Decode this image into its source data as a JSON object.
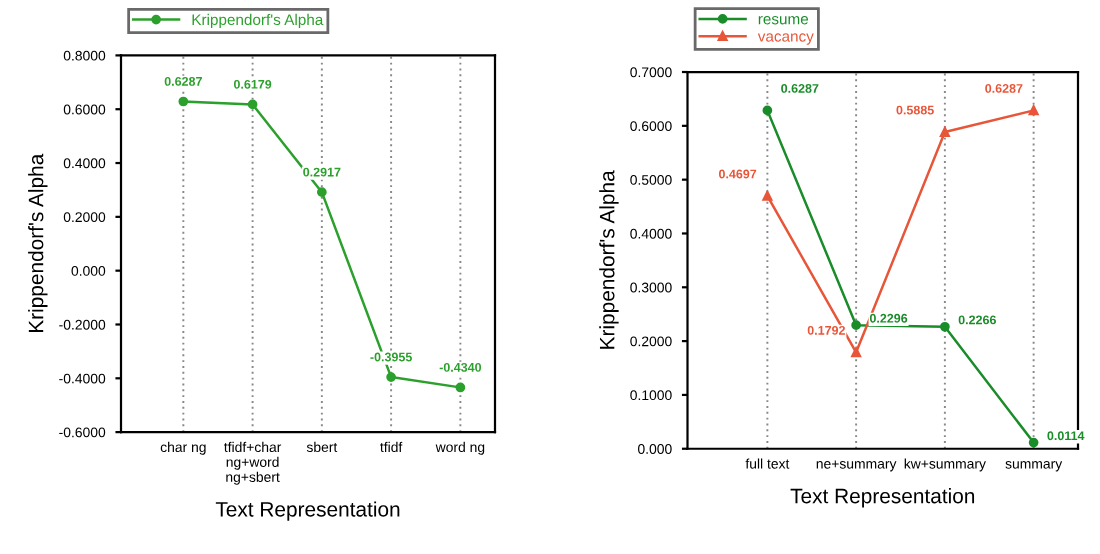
{
  "chart_data": [
    {
      "type": "line",
      "xlabel": "Text Representation",
      "ylabel": "Krippendorf's Alpha",
      "categories": [
        "char ng",
        "tfidf+char\nng+word\nng+sbert",
        "sbert",
        "tfidf",
        "word ng"
      ],
      "series": [
        {
          "name": "Krippendorf's Alpha",
          "color": "#2ca02c",
          "values": [
            0.6287,
            0.6179,
            0.2917,
            -0.3955,
            -0.434
          ],
          "marker": "circle",
          "value_labels": [
            "0.6287",
            "0.6179",
            "0.2917",
            "-0.3955",
            "-0.4340"
          ]
        }
      ],
      "ylim": [
        -0.6,
        0.8
      ],
      "yticks": [
        {
          "value": -0.6,
          "label": "-0.6000"
        },
        {
          "value": -0.4,
          "label": "-0.4000"
        },
        {
          "value": -0.2,
          "label": "-0.2000"
        },
        {
          "value": 0,
          "label": "0.000"
        },
        {
          "value": 0.2,
          "label": "0.2000"
        },
        {
          "value": 0.4,
          "label": "0.4000"
        },
        {
          "value": 0.6,
          "label": "0.6000"
        },
        {
          "value": 0.8,
          "label": "0.8000"
        }
      ],
      "legend": "top left",
      "grid": "x"
    },
    {
      "type": "line",
      "xlabel": "Text Representation",
      "ylabel": "Krippendorf's Alpha",
      "categories": [
        "full text",
        "ne+summary",
        "kw+summary",
        "summary"
      ],
      "series": [
        {
          "name": "resume",
          "color": "#1a8c2a",
          "values": [
            0.6287,
            0.2296,
            0.2266,
            0.0114
          ],
          "marker": "circle",
          "value_labels": [
            "0.6287",
            "0.2296",
            "0.2266",
            "0.0114"
          ]
        },
        {
          "name": "vacancy",
          "color": "#e8563a",
          "values": [
            0.4697,
            0.1792,
            0.5885,
            0.6287
          ],
          "marker": "triangle",
          "value_labels": [
            "0.4697",
            "0.1792",
            "0.5885",
            "0.6287"
          ]
        }
      ],
      "ylim": [
        0,
        0.7
      ],
      "yticks": [
        {
          "value": 0,
          "label": "0.000"
        },
        {
          "value": 0.1,
          "label": "0.1000"
        },
        {
          "value": 0.2,
          "label": "0.2000"
        },
        {
          "value": 0.3,
          "label": "0.3000"
        },
        {
          "value": 0.4,
          "label": "0.4000"
        },
        {
          "value": 0.5,
          "label": "0.5000"
        },
        {
          "value": 0.6,
          "label": "0.6000"
        },
        {
          "value": 0.7,
          "label": "0.7000"
        }
      ],
      "legend": "top left",
      "grid": "x"
    }
  ]
}
